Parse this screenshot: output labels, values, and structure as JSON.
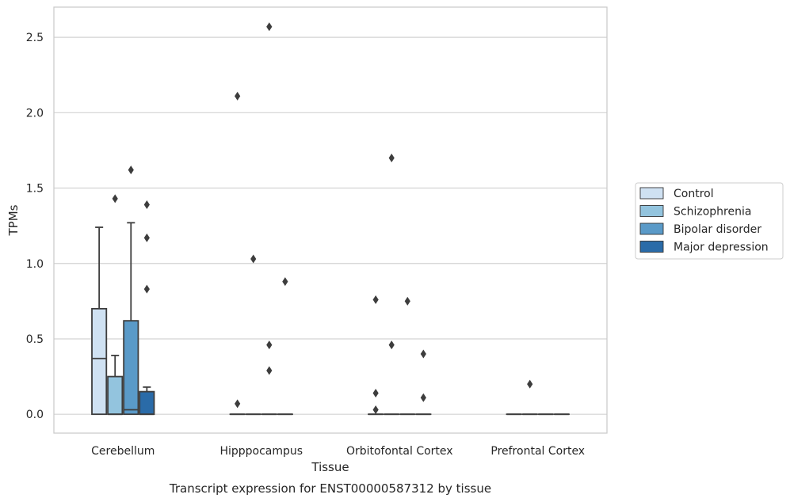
{
  "chart_data": {
    "type": "boxplot",
    "caption": "Transcript expression for ENST00000587312 by tissue",
    "xlabel": "Tissue",
    "ylabel": "TPMs",
    "ylim": [
      -0.125,
      2.7
    ],
    "yticks": [
      "0.0",
      "0.5",
      "1.0",
      "1.5",
      "2.0",
      "2.5"
    ],
    "ytick_values": [
      0,
      0.5,
      1.0,
      1.5,
      2.0,
      2.5
    ],
    "grid": "horizontal",
    "legend_placement": "right",
    "categories": [
      "Cerebellum",
      "Hipppocampus",
      "Orbitofontal Cortex",
      "Prefrontal Cortex"
    ],
    "series": [
      {
        "name": "Control",
        "color": "#cfe1f2",
        "boxes": [
          {
            "q1": 0.0,
            "median": 0.37,
            "q3": 0.7,
            "whisker_low": 0.0,
            "whisker_high": 1.24,
            "outliers": []
          },
          {
            "q1": 0.0,
            "median": 0.0,
            "q3": 0.0,
            "whisker_low": 0.0,
            "whisker_high": 0.0,
            "outliers": [
              2.11,
              0.07
            ]
          },
          {
            "q1": 0.0,
            "median": 0.0,
            "q3": 0.0,
            "whisker_low": 0.0,
            "whisker_high": 0.0,
            "outliers": [
              0.76,
              0.14,
              0.03
            ]
          },
          {
            "q1": 0.0,
            "median": 0.0,
            "q3": 0.0,
            "whisker_low": 0.0,
            "whisker_high": 0.0,
            "outliers": []
          }
        ]
      },
      {
        "name": "Schizophrenia",
        "color": "#93c4de",
        "boxes": [
          {
            "q1": 0.0,
            "median": 0.0,
            "q3": 0.25,
            "whisker_low": 0.0,
            "whisker_high": 0.39,
            "outliers": [
              1.43
            ]
          },
          {
            "q1": 0.0,
            "median": 0.0,
            "q3": 0.0,
            "whisker_low": 0.0,
            "whisker_high": 0.0,
            "outliers": [
              1.03
            ]
          },
          {
            "q1": 0.0,
            "median": 0.0,
            "q3": 0.0,
            "whisker_low": 0.0,
            "whisker_high": 0.0,
            "outliers": [
              1.7,
              0.46
            ]
          },
          {
            "q1": 0.0,
            "median": 0.0,
            "q3": 0.0,
            "whisker_low": 0.0,
            "whisker_high": 0.0,
            "outliers": [
              0.2
            ]
          }
        ]
      },
      {
        "name": "Bipolar disorder",
        "color": "#5a9ac8",
        "boxes": [
          {
            "q1": 0.0,
            "median": 0.03,
            "q3": 0.62,
            "whisker_low": 0.0,
            "whisker_high": 1.27,
            "outliers": [
              1.62
            ]
          },
          {
            "q1": 0.0,
            "median": 0.0,
            "q3": 0.0,
            "whisker_low": 0.0,
            "whisker_high": 0.0,
            "outliers": [
              2.57,
              0.46,
              0.29
            ]
          },
          {
            "q1": 0.0,
            "median": 0.0,
            "q3": 0.0,
            "whisker_low": 0.0,
            "whisker_high": 0.0,
            "outliers": [
              0.75
            ]
          },
          {
            "q1": 0.0,
            "median": 0.0,
            "q3": 0.0,
            "whisker_low": 0.0,
            "whisker_high": 0.0,
            "outliers": []
          }
        ]
      },
      {
        "name": "Major depression",
        "color": "#2a6ba8",
        "boxes": [
          {
            "q1": 0.0,
            "median": 0.0,
            "q3": 0.15,
            "whisker_low": 0.0,
            "whisker_high": 0.18,
            "outliers": [
              1.39,
              1.17,
              0.83
            ]
          },
          {
            "q1": 0.0,
            "median": 0.0,
            "q3": 0.0,
            "whisker_low": 0.0,
            "whisker_high": 0.0,
            "outliers": [
              0.88
            ]
          },
          {
            "q1": 0.0,
            "median": 0.0,
            "q3": 0.0,
            "whisker_low": 0.0,
            "whisker_high": 0.0,
            "outliers": [
              0.4,
              0.11
            ]
          },
          {
            "q1": 0.0,
            "median": 0.0,
            "q3": 0.0,
            "whisker_low": 0.0,
            "whisker_high": 0.0,
            "outliers": []
          }
        ]
      }
    ]
  }
}
